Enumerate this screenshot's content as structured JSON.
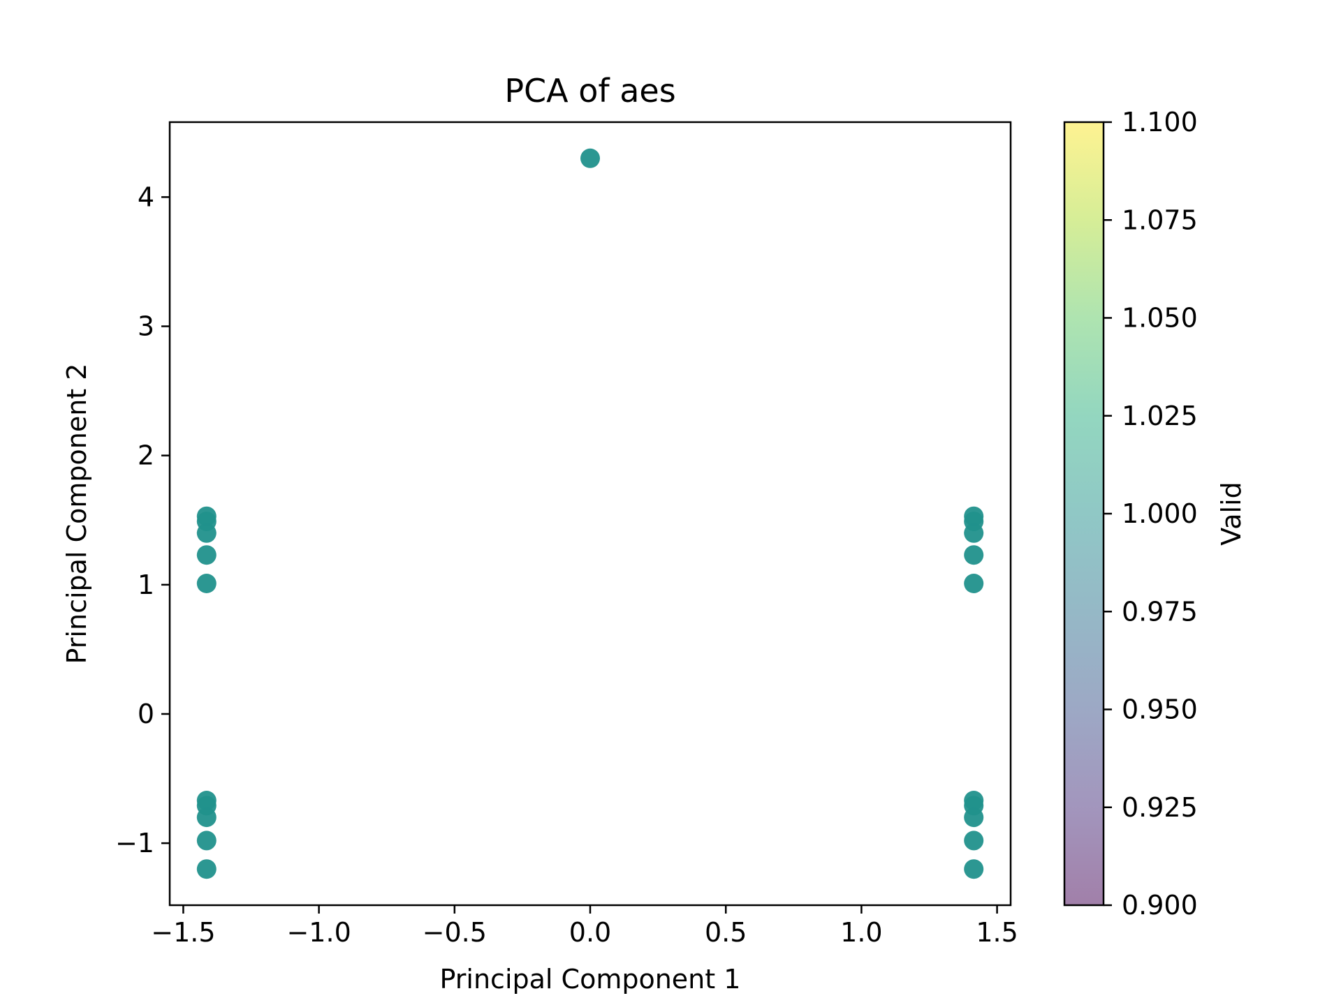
{
  "chart_data": {
    "type": "scatter",
    "title": "PCA of aes",
    "xlabel": "Principal Component 1",
    "ylabel": "Principal Component 2",
    "xlim": [
      -1.55,
      1.55
    ],
    "ylim": [
      -1.48,
      4.58
    ],
    "xticks": [
      -1.5,
      -1.0,
      -0.5,
      0.0,
      0.5,
      1.0,
      1.5
    ],
    "xtick_labels": [
      "−1.5",
      "−1.0",
      "−0.5",
      "0.0",
      "0.5",
      "1.0",
      "1.5"
    ],
    "yticks": [
      -1,
      0,
      1,
      2,
      3,
      4
    ],
    "ytick_labels": [
      "−1",
      "0",
      "1",
      "2",
      "3",
      "4"
    ],
    "grid": false,
    "point_color": "#21918c",
    "points": [
      {
        "x": 0.0,
        "y": 4.3
      },
      {
        "x": -1.414,
        "y": 1.53
      },
      {
        "x": -1.414,
        "y": 1.49
      },
      {
        "x": -1.414,
        "y": 1.4
      },
      {
        "x": -1.414,
        "y": 1.23
      },
      {
        "x": -1.414,
        "y": 1.01
      },
      {
        "x": -1.414,
        "y": -0.67
      },
      {
        "x": -1.414,
        "y": -0.71
      },
      {
        "x": -1.414,
        "y": -0.8
      },
      {
        "x": -1.414,
        "y": -0.98
      },
      {
        "x": -1.414,
        "y": -1.2
      },
      {
        "x": 1.414,
        "y": 1.53
      },
      {
        "x": 1.414,
        "y": 1.49
      },
      {
        "x": 1.414,
        "y": 1.4
      },
      {
        "x": 1.414,
        "y": 1.23
      },
      {
        "x": 1.414,
        "y": 1.01
      },
      {
        "x": 1.414,
        "y": -0.67
      },
      {
        "x": 1.414,
        "y": -0.71
      },
      {
        "x": 1.414,
        "y": -0.8
      },
      {
        "x": 1.414,
        "y": -0.98
      },
      {
        "x": 1.414,
        "y": -1.2
      }
    ],
    "colorbar": {
      "label": "Valid",
      "range": [
        0.9,
        1.1
      ],
      "ticks": [
        0.9,
        0.925,
        0.95,
        0.975,
        1.0,
        1.025,
        1.05,
        1.075,
        1.1
      ],
      "tick_labels": [
        "0.900",
        "0.925",
        "0.950",
        "0.975",
        "1.000",
        "1.025",
        "1.050",
        "1.075",
        "1.100"
      ],
      "colormap": "viridis",
      "alpha": 0.5
    }
  }
}
